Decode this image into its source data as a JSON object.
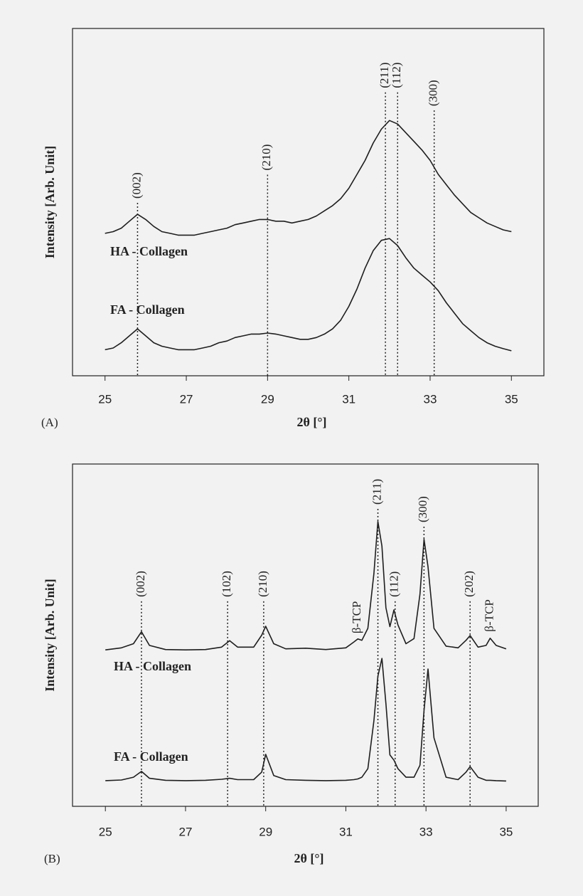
{
  "chart_data": [
    {
      "type": "line",
      "panel": "(A)",
      "xlabel": "2θ [°]",
      "ylabel": "Intensity [Arb. Unit]",
      "xlim": [
        24.2,
        35.8
      ],
      "xticks": [
        25,
        27,
        29,
        31,
        33,
        35
      ],
      "ylim": [
        0,
        100
      ],
      "x": [
        25,
        25.2,
        25.4,
        25.6,
        25.8,
        26,
        26.2,
        26.4,
        26.6,
        26.8,
        27,
        27.2,
        27.4,
        27.6,
        27.8,
        28,
        28.2,
        28.4,
        28.6,
        28.8,
        29,
        29.2,
        29.4,
        29.6,
        29.8,
        30,
        30.2,
        30.4,
        30.6,
        30.8,
        31,
        31.2,
        31.4,
        31.6,
        31.8,
        32,
        32.2,
        32.4,
        32.6,
        32.8,
        33,
        33.2,
        33.4,
        33.6,
        33.8,
        34,
        34.2,
        34.4,
        34.6,
        34.8,
        35
      ],
      "series": [
        {
          "name": "HA - Collagen",
          "color": "#1e1e1e",
          "values": [
            41,
            41.5,
            42.5,
            44.5,
            46.5,
            45,
            43,
            41.5,
            41,
            40.5,
            40.5,
            40.5,
            41,
            41.5,
            42,
            42.5,
            43.5,
            44,
            44.5,
            45,
            45,
            44.5,
            44.5,
            44,
            44.5,
            45,
            46,
            47.5,
            49,
            51,
            54,
            58,
            62,
            67,
            71,
            73.5,
            72.5,
            70,
            67.5,
            65,
            62,
            58,
            55,
            52,
            49.5,
            47,
            45.5,
            44,
            43,
            42,
            41.5
          ]
        },
        {
          "name": "FA - Collagen",
          "color": "#1e1e1e",
          "values": [
            7.5,
            8,
            9.5,
            11.5,
            13.5,
            11.5,
            9.5,
            8.5,
            8,
            7.5,
            7.5,
            7.5,
            8,
            8.5,
            9.5,
            10,
            11,
            11.5,
            12,
            12,
            12.3,
            12,
            11.5,
            11,
            10.5,
            10.5,
            11,
            12,
            13.5,
            16,
            20,
            25,
            31,
            36,
            39,
            39.5,
            37.5,
            34,
            31,
            29,
            27,
            24.5,
            21,
            18,
            15,
            13,
            11,
            9.5,
            8.5,
            7.8,
            7.2
          ]
        }
      ],
      "annotations": [
        {
          "text": "(002)",
          "x": 25.8,
          "y": 49.8,
          "line": true
        },
        {
          "text": "(210)",
          "x": 29.0,
          "y": 57.9,
          "line": true
        },
        {
          "text": "(211)",
          "x": 31.9,
          "y": 81.6,
          "line": true
        },
        {
          "text": "(112)",
          "x": 32.2,
          "y": 81.6,
          "line": true
        },
        {
          "text": "(300)",
          "x": 33.1,
          "y": 76.4,
          "line": true
        }
      ]
    },
    {
      "type": "line",
      "panel": "(B)",
      "xlabel": "2θ [°]",
      "ylabel": "Intensity [Arb. Unit]",
      "xlim": [
        24.18,
        35.8
      ],
      "xticks": [
        25,
        27,
        29,
        31,
        33,
        35
      ],
      "ylim": [
        0,
        100
      ],
      "x": [
        25,
        25.4,
        25.7,
        25.9,
        26.1,
        26.5,
        27,
        27.5,
        27.9,
        28.1,
        28.3,
        28.7,
        28.9,
        29,
        29.2,
        29.5,
        30,
        30.5,
        31,
        31.2,
        31.3,
        31.4,
        31.55,
        31.7,
        31.8,
        31.9,
        32,
        32.1,
        32.2,
        32.3,
        32.5,
        32.7,
        32.85,
        32.95,
        33.05,
        33.2,
        33.5,
        33.8,
        34,
        34.1,
        34.3,
        34.5,
        34.6,
        34.75,
        35
      ],
      "series": [
        {
          "name": "HA - Collagen",
          "color": "#1e1e1e",
          "values": [
            45.7,
            46.3,
            47.5,
            51,
            47,
            45.8,
            45.7,
            45.8,
            46.5,
            48.4,
            46.5,
            46.5,
            50,
            52.6,
            47.5,
            46,
            46.2,
            45.8,
            46.3,
            48,
            48.9,
            48.5,
            52,
            68,
            83.2,
            76,
            58,
            52.5,
            57.4,
            53,
            47.5,
            49,
            62,
            78,
            70,
            52,
            46.8,
            46.3,
            48.5,
            49.9,
            46.5,
            47,
            49.1,
            47,
            46
          ]
        },
        {
          "name": "FA - Collagen",
          "color": "#1e1e1e",
          "values": [
            7.5,
            7.7,
            8.5,
            10.2,
            8.2,
            7.6,
            7.5,
            7.6,
            7.9,
            8.2,
            7.8,
            7.8,
            10,
            15.2,
            9,
            7.8,
            7.6,
            7.5,
            7.6,
            7.8,
            8,
            8.5,
            11,
            25,
            38,
            43.2,
            30,
            15,
            13.5,
            11,
            8.5,
            8.5,
            12,
            28,
            40.1,
            20,
            8.5,
            7.8,
            10,
            11.6,
            8.5,
            7.6,
            7.6,
            7.5,
            7.4
          ]
        }
      ],
      "annotations": [
        {
          "text": "(002)",
          "x": 25.9,
          "y": 59.9,
          "line": true
        },
        {
          "text": "(102)",
          "x": 28.05,
          "y": 59.9,
          "line": true
        },
        {
          "text": "(210)",
          "x": 28.95,
          "y": 59.9,
          "line": true
        },
        {
          "text": "β-TCP",
          "x": 31.3,
          "y": 50.5,
          "line": false
        },
        {
          "text": "(211)",
          "x": 31.8,
          "y": 86.9,
          "line": true
        },
        {
          "text": "(112)",
          "x": 32.23,
          "y": 59.9,
          "line": true
        },
        {
          "text": "(300)",
          "x": 32.95,
          "y": 81.7,
          "line": true
        },
        {
          "text": "(202)",
          "x": 34.1,
          "y": 59.9,
          "line": true
        },
        {
          "text": "β-TCP",
          "x": 34.6,
          "y": 51,
          "line": false
        }
      ]
    }
  ]
}
